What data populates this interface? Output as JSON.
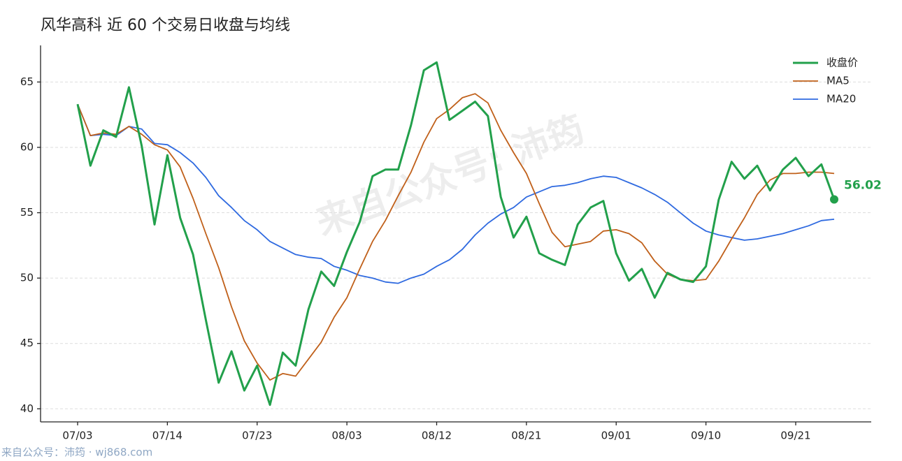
{
  "chart_data": {
    "type": "line",
    "title": "风华高科 近 60 个交易日收盘与均线",
    "watermark": "来自公众号: 沛筠",
    "footer": "来自公众号：沛筠 · wj868.com",
    "categories": [
      "07/03",
      null,
      null,
      null,
      null,
      null,
      null,
      "07/14",
      null,
      null,
      null,
      null,
      null,
      null,
      "07/23",
      null,
      null,
      null,
      null,
      null,
      null,
      "08/03",
      null,
      null,
      null,
      null,
      null,
      null,
      "08/12",
      null,
      null,
      null,
      null,
      null,
      null,
      "08/21",
      null,
      null,
      null,
      null,
      null,
      null,
      "09/01",
      null,
      null,
      null,
      null,
      null,
      null,
      "09/10",
      null,
      null,
      null,
      null,
      null,
      null,
      "09/21",
      null,
      null,
      null
    ],
    "series": [
      {
        "name": "收盘价",
        "color": "#22a04b",
        "width": 3,
        "values": [
          63.3,
          58.6,
          61.3,
          60.8,
          64.6,
          60.1,
          54.1,
          59.4,
          54.6,
          51.8,
          46.8,
          42.0,
          44.4,
          41.4,
          43.3,
          40.3,
          44.3,
          43.3,
          47.6,
          50.5,
          49.4,
          52.0,
          54.3,
          57.8,
          58.3,
          58.3,
          61.7,
          65.9,
          66.5,
          62.1,
          62.8,
          63.5,
          62.4,
          56.2,
          53.1,
          54.7,
          51.9,
          51.4,
          51.0,
          54.1,
          55.4,
          55.9,
          51.9,
          49.8,
          50.7,
          48.5,
          50.4,
          49.9,
          49.7,
          50.9,
          56.0,
          58.9,
          57.6,
          58.6,
          56.7,
          58.3,
          59.2,
          57.8,
          58.7,
          56.02
        ]
      },
      {
        "name": "MA5",
        "color": "#c0601a",
        "width": 1.8,
        "values": [
          63.3,
          60.9,
          61.1,
          61.0,
          61.6,
          61.0,
          60.2,
          59.8,
          58.5,
          56.1,
          53.4,
          50.8,
          47.8,
          45.2,
          43.5,
          42.2,
          42.7,
          42.5,
          43.8,
          45.1,
          47.0,
          48.5,
          50.7,
          52.8,
          54.4,
          56.3,
          58.1,
          60.4,
          62.2,
          62.9,
          63.8,
          64.1,
          63.4,
          61.3,
          59.6,
          58.0,
          55.7,
          53.5,
          52.4,
          52.6,
          52.8,
          53.6,
          53.7,
          53.4,
          52.7,
          51.3,
          50.3,
          49.9,
          49.8,
          49.9,
          51.3,
          53.0,
          54.6,
          56.4,
          57.5,
          58.0,
          58.0,
          58.1,
          58.1,
          58.0
        ]
      },
      {
        "name": "MA20",
        "color": "#2f6ae0",
        "width": 1.8,
        "values": [
          63.3,
          60.9,
          61.0,
          60.9,
          61.6,
          61.4,
          60.3,
          60.2,
          59.6,
          58.8,
          57.7,
          56.3,
          55.4,
          54.4,
          53.7,
          52.8,
          52.3,
          51.8,
          51.6,
          51.5,
          50.9,
          50.6,
          50.2,
          50.0,
          49.7,
          49.6,
          50.0,
          50.3,
          50.9,
          51.4,
          52.2,
          53.3,
          54.2,
          54.9,
          55.4,
          56.2,
          56.6,
          57.0,
          57.1,
          57.3,
          57.6,
          57.8,
          57.7,
          57.3,
          56.9,
          56.4,
          55.8,
          55.0,
          54.2,
          53.6,
          53.3,
          53.1,
          52.9,
          53.0,
          53.2,
          53.4,
          53.7,
          54.0,
          54.4,
          54.5
        ]
      }
    ],
    "ylim": [
      39,
      67.8
    ],
    "yticks": [
      40,
      45,
      50,
      55,
      60,
      65
    ],
    "grid": true,
    "legend": "upper right"
  }
}
